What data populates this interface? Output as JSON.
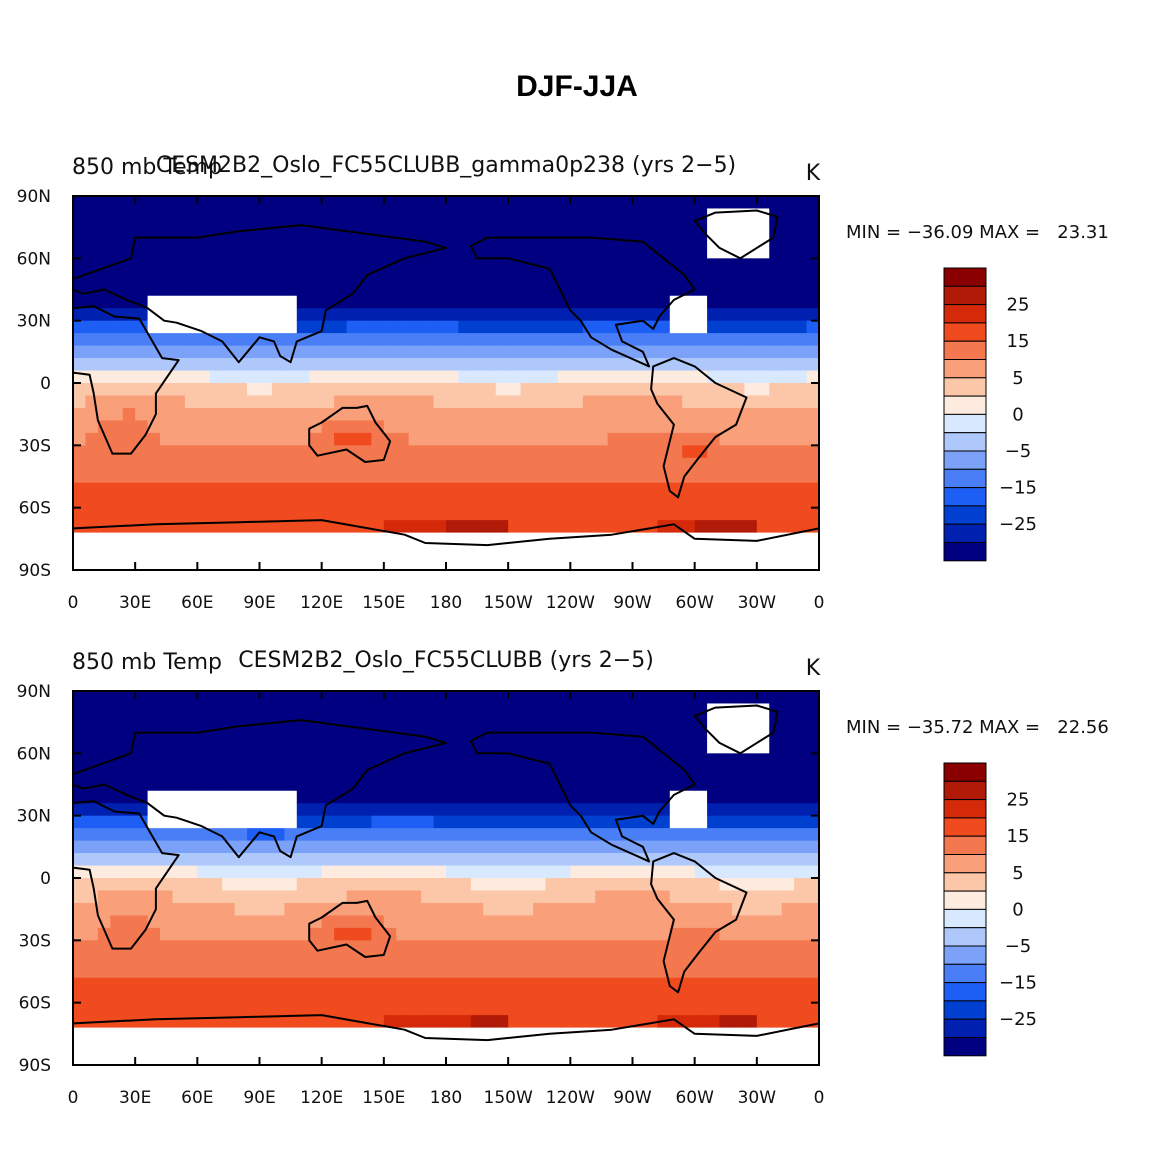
{
  "title": "DJF-JJA",
  "colormap": {
    "boundaries": [
      -30,
      -25,
      -20,
      -15,
      -10,
      -5,
      -2,
      0,
      2,
      5,
      10,
      15,
      20,
      25,
      30
    ],
    "colors": [
      "#000080",
      "#0020b0",
      "#0040d0",
      "#1d5ef5",
      "#4a7ef7",
      "#7ba2f8",
      "#aec8fb",
      "#d8e8fe",
      "#fdebe0",
      "#fcc7a9",
      "#f9a07a",
      "#f3784f",
      "#f04a1f",
      "#d52a0a",
      "#b01a06",
      "#8a0000"
    ],
    "tick_labels": [
      "25",
      "15",
      "5",
      "0",
      "−5",
      "−15",
      "−25"
    ]
  },
  "chart_data": [
    {
      "type": "heatmap",
      "left_title": "850 mb Temp",
      "center_title": "CESM2B2_Oslo_FC55CLUBB_gamma0p238 (yrs 2−5)",
      "units": "K",
      "min_max_text": "MIN = −36.09 MAX =   23.31",
      "min": -36.09,
      "max": 23.31,
      "x_ticks": [
        "0",
        "30E",
        "60E",
        "90E",
        "120E",
        "150E",
        "180",
        "150W",
        "120W",
        "90W",
        "60W",
        "30W",
        "0"
      ],
      "y_ticks": [
        "90N",
        "60N",
        "30N",
        "0",
        "30S",
        "60S",
        "90S"
      ],
      "xlim": [
        0,
        360
      ],
      "ylim": [
        -90,
        90
      ]
    },
    {
      "type": "heatmap",
      "left_title": "850 mb Temp",
      "center_title": "CESM2B2_Oslo_FC55CLUBB (yrs 2−5)",
      "units": "K",
      "min_max_text": "MIN = −35.72 MAX =   22.56",
      "min": -35.72,
      "max": 22.56,
      "x_ticks": [
        "0",
        "30E",
        "60E",
        "90E",
        "120E",
        "150E",
        "180",
        "150W",
        "120W",
        "90W",
        "60W",
        "30W",
        "0"
      ],
      "y_ticks": [
        "90N",
        "60N",
        "30N",
        "0",
        "30S",
        "60S",
        "90S"
      ],
      "xlim": [
        0,
        360
      ],
      "ylim": [
        -90,
        90
      ]
    }
  ]
}
